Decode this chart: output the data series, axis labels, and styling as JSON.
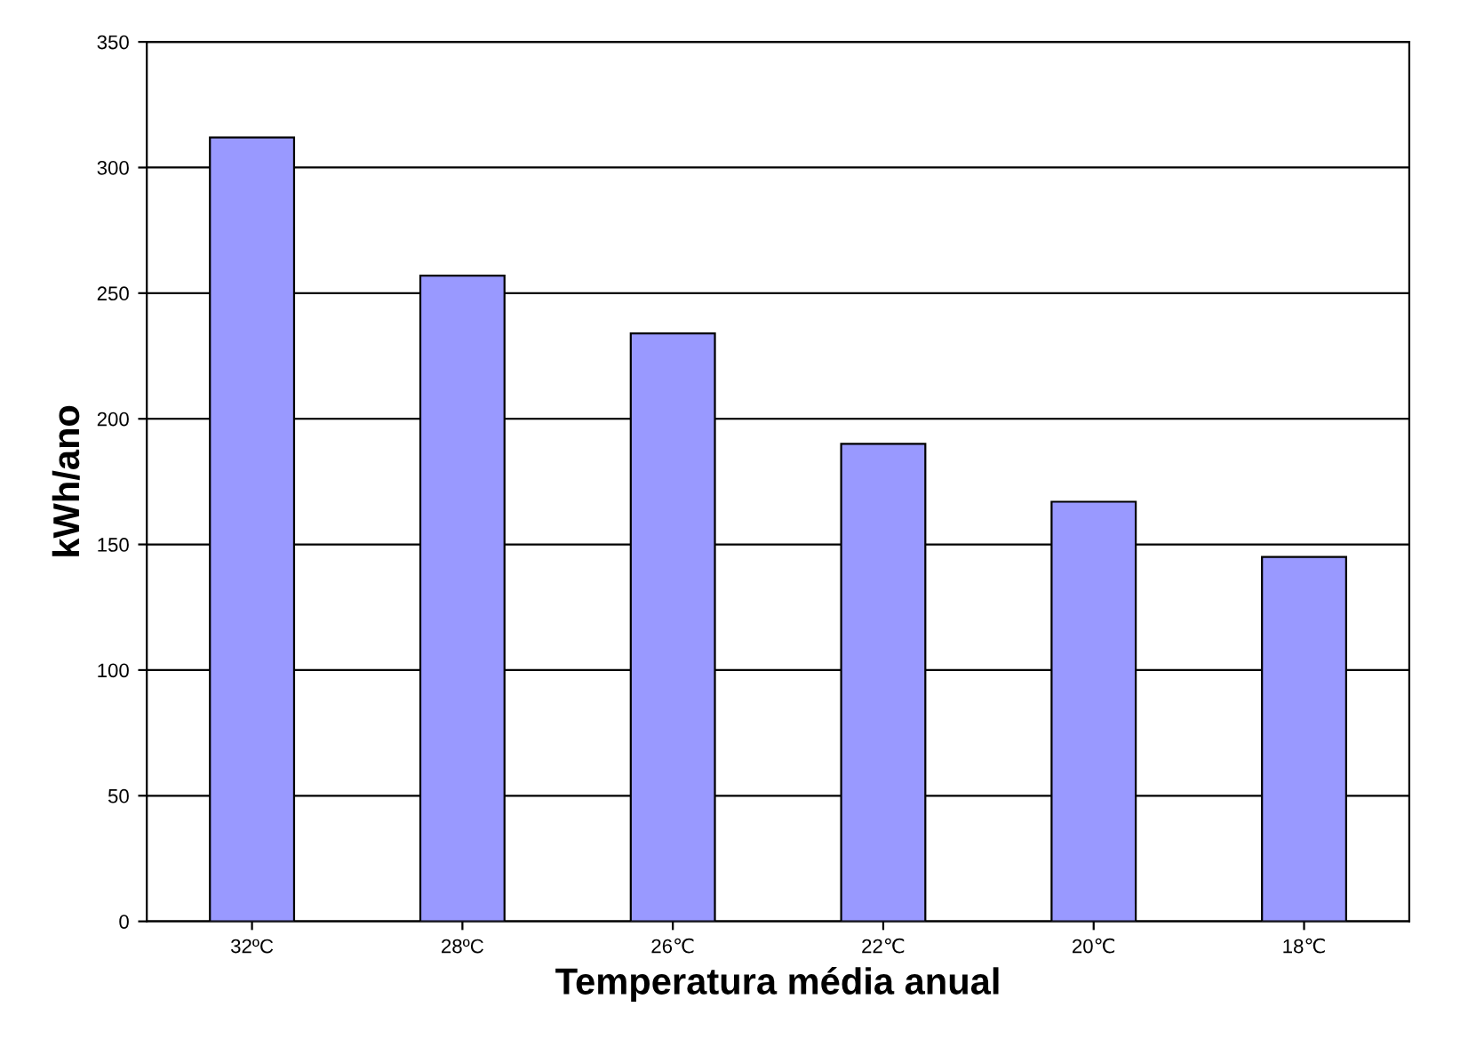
{
  "chart_data": {
    "type": "bar",
    "xlabel": "Temperatura média anual",
    "ylabel": "kWh/ano",
    "categories": [
      "32ºC",
      "28ºC",
      "26℃",
      "22℃",
      "20℃",
      "18℃"
    ],
    "values": [
      312,
      257,
      234,
      190,
      167,
      145
    ],
    "color": "#9999ff",
    "ylim": [
      0,
      350
    ],
    "yticks": [
      0,
      50,
      100,
      150,
      200,
      250,
      300,
      350
    ],
    "grid": "y"
  }
}
